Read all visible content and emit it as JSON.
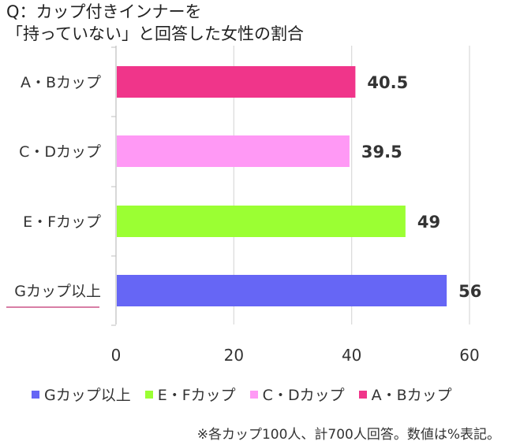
{
  "title": {
    "line1": "Q：カップ付きインナーを",
    "line2": "「持っていない」と回答した女性の割合"
  },
  "chart_data": {
    "type": "bar",
    "orientation": "horizontal",
    "categories": [
      "A・Bカップ",
      "C・Dカップ",
      "E・Fカップ",
      "Gカップ以上"
    ],
    "values": [
      40.5,
      39.5,
      49,
      56
    ],
    "value_labels": [
      "40.5",
      "39.5",
      "49",
      "56"
    ],
    "colors": [
      "#f0358a",
      "#ff99f5",
      "#9bff33",
      "#6666f5"
    ],
    "xlim": [
      0,
      60
    ],
    "x_ticks": [
      "0",
      "20",
      "40",
      "60"
    ],
    "grid": true,
    "legend_position": "bottom",
    "legend": [
      {
        "label": "Gカップ以上",
        "color": "#6666f5"
      },
      {
        "label": "E・Fカップ",
        "color": "#9bff33"
      },
      {
        "label": "C・Dカップ",
        "color": "#ff99f5"
      },
      {
        "label": "A・Bカップ",
        "color": "#f0358a"
      }
    ]
  },
  "footnote": "※各カップ100人、計700人回答。数値は%表記。"
}
